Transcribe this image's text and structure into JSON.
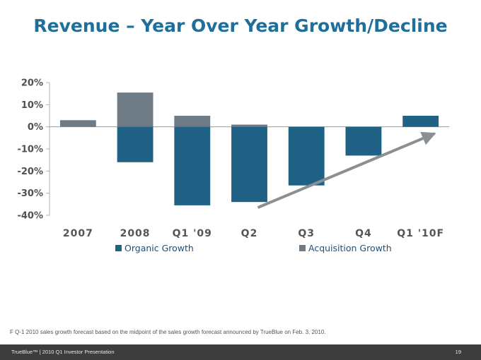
{
  "title": "Revenue – Year Over Year Growth/Decline",
  "footnote": "F Q-1 2010 sales growth forecast based on the midpoint of the sales growth forecast announced by TrueBlue on Feb. 3, 2010.",
  "footer": {
    "left": "TrueBlue™ | 2010 Q1 Investor Presentation",
    "page": "19"
  },
  "colors": {
    "organic": "#1f6286",
    "acquisition": "#6e7a84",
    "arrow": "#8a8f94",
    "title": "#1f6f9a"
  },
  "chart_data": {
    "type": "bar",
    "stacked": true,
    "title": "Revenue – Year Over Year Growth/Decline",
    "categories": [
      "2007",
      "2008",
      "Q1 '09",
      "Q2",
      "Q3",
      "Q4",
      "Q1 '10F"
    ],
    "series": [
      {
        "name": "Organic Growth",
        "values": [
          0,
          -16,
          -35.5,
          -34,
          -26.5,
          -13,
          5
        ]
      },
      {
        "name": "Acquisition Growth",
        "values": [
          3,
          15.5,
          5,
          1,
          0,
          0,
          0
        ]
      }
    ],
    "ylim": [
      -40,
      20
    ],
    "yticks": [
      20,
      10,
      0,
      -10,
      -20,
      -30,
      -40
    ],
    "ytick_labels": [
      "20%",
      "10%",
      "0%",
      "-10%",
      "-20%",
      "-30%",
      "-40%"
    ],
    "legend_position": "bottom",
    "annotations": [
      {
        "type": "arrow",
        "from_category": "Q2",
        "to_category": "Q1 '10F",
        "direction": "up-right"
      }
    ]
  }
}
